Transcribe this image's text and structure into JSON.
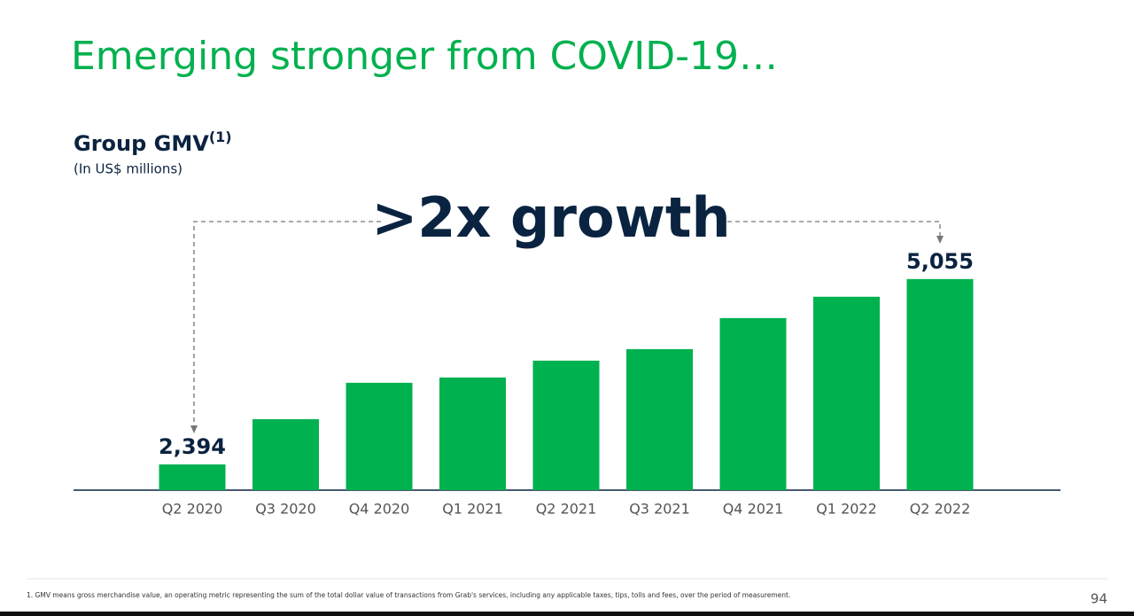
{
  "chart_data": {
    "type": "bar",
    "page_title": "Emerging stronger from COVID-19…",
    "title": "Group GMV",
    "title_note": "(1)",
    "subtitle": "(In US$ millions)",
    "annotation": ">2x growth",
    "categories": [
      "Q2 2020",
      "Q3 2020",
      "Q4 2020",
      "Q1 2021",
      "Q2 2021",
      "Q3 2021",
      "Q4 2021",
      "Q1 2022",
      "Q2 2022"
    ],
    "values": [
      2394,
      3044,
      3566,
      3642,
      3884,
      4049,
      4495,
      4801,
      5055
    ],
    "value_labels": [
      "2,394",
      null,
      null,
      null,
      null,
      null,
      null,
      null,
      "5,055"
    ],
    "color": "#00b14f",
    "ylim": [
      2025,
      5600
    ],
    "footnote": "1. GMV means gross merchandise value, an operating metric representing the sum of the total dollar value of transactions from Grab's services, including any applicable taxes, tips, tolls and fees, over the period of measurement.",
    "page_number": "94"
  }
}
